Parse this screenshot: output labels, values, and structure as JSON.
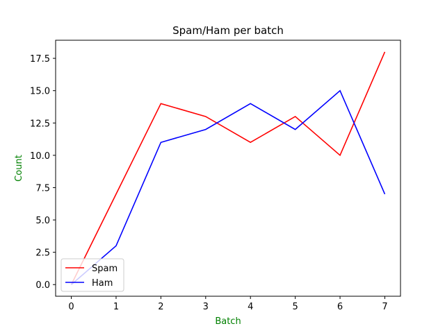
{
  "chart_data": {
    "type": "line",
    "title": "Spam/Ham per batch",
    "xlabel": "Batch",
    "ylabel": "Count",
    "label_color": "#008000",
    "x": [
      0,
      1,
      2,
      3,
      4,
      5,
      6,
      7
    ],
    "xlim": [
      -0.35,
      7.35
    ],
    "ylim": [
      -0.9,
      18.9
    ],
    "xticks": [
      0,
      1,
      2,
      3,
      4,
      5,
      6,
      7
    ],
    "xtick_labels": [
      "0",
      "1",
      "2",
      "3",
      "4",
      "5",
      "6",
      "7"
    ],
    "yticks": [
      0,
      2.5,
      5,
      7.5,
      10,
      12.5,
      15,
      17.5
    ],
    "ytick_labels": [
      "0.0",
      "2.5",
      "5.0",
      "7.5",
      "10.0",
      "12.5",
      "15.0",
      "17.5"
    ],
    "grid": false,
    "legend": "lower-left",
    "series": [
      {
        "name": "Spam",
        "color": "#ff0000",
        "values": [
          0,
          7,
          14,
          13,
          11,
          13,
          10,
          18
        ]
      },
      {
        "name": "Ham",
        "color": "#0000ff",
        "values": [
          0,
          3,
          11,
          12,
          14,
          12,
          15,
          7
        ]
      }
    ]
  }
}
